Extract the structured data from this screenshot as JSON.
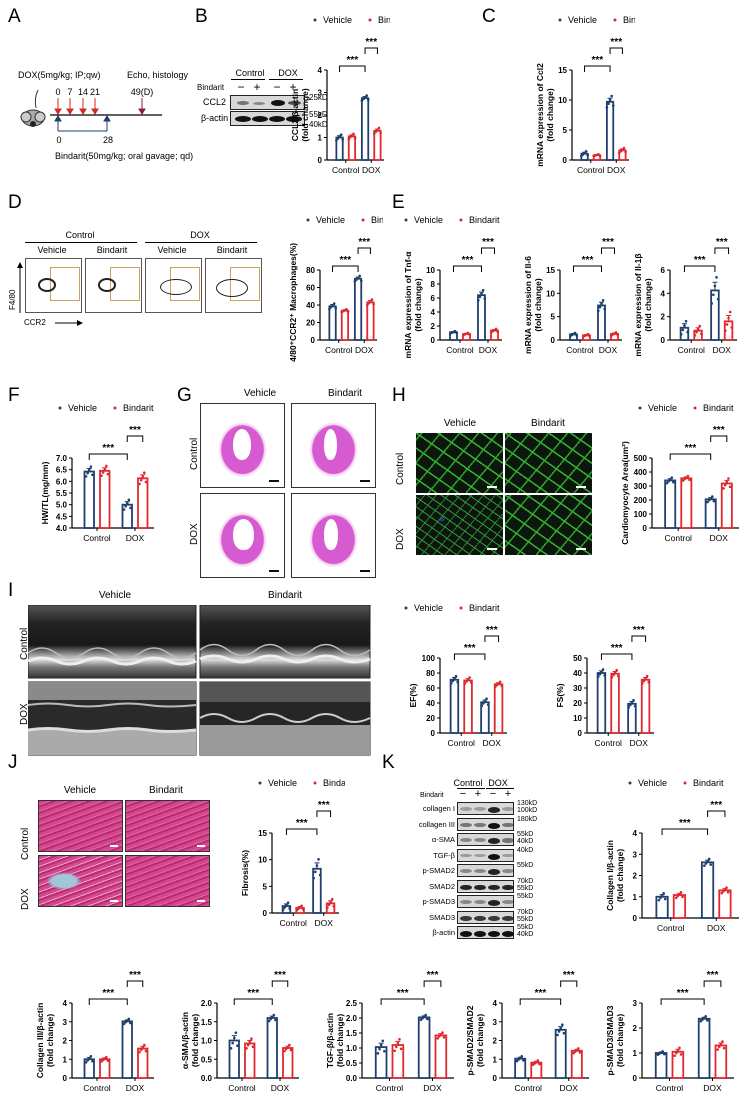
{
  "panels": {
    "A": {
      "label": "A",
      "dox_protocol": "DOX(5mg/kg; IP;qw)",
      "endpoint": "Echo, histology",
      "dox_days": [
        "0",
        "7",
        "14",
        "21"
      ],
      "end_day": "49(D)",
      "bindarit_start": "0",
      "bindarit_end": "28",
      "bindarit_protocol": "Bindarit(50mg/kg; oral gavage; qd)",
      "arrow_color": "#d12a2a"
    },
    "B": {
      "label": "B",
      "groups": [
        "Control",
        "DOX"
      ],
      "bindarit_row": "Bindarit",
      "signs": [
        "−",
        "+",
        "−",
        "+"
      ],
      "rows": [
        {
          "name": "CCL2",
          "markers": [
            "25kD"
          ]
        },
        {
          "name": "β-actin",
          "markers": [
            "55kD",
            "40kD"
          ]
        }
      ]
    },
    "C": {
      "label": "C"
    },
    "D": {
      "label": "D",
      "groups": [
        "Control",
        "DOX"
      ],
      "subgroups": [
        "Vehicle",
        "Bindarit",
        "Vehicle",
        "Bindarit"
      ],
      "y_axis": "F4/80",
      "x_axis": "CCR2"
    },
    "E": {
      "label": "E"
    },
    "F": {
      "label": "F"
    },
    "G": {
      "label": "G",
      "cols": [
        "Vehicle",
        "Bindarit"
      ],
      "rows": [
        "Control",
        "DOX"
      ]
    },
    "H": {
      "label": "H",
      "cols": [
        "Vehicle",
        "Bindarit"
      ],
      "rows": [
        "Control",
        "DOX"
      ]
    },
    "I": {
      "label": "I",
      "cols": [
        "Vehicle",
        "Bindarit"
      ],
      "rows": [
        "Control",
        "DOX"
      ]
    },
    "J": {
      "label": "J",
      "cols": [
        "Vehicle",
        "Bindarit"
      ],
      "rows": [
        "Control",
        "DOX"
      ]
    },
    "K": {
      "label": "K",
      "groups": [
        "Control",
        "DOX"
      ],
      "bindarit_row": "Bindarit",
      "signs": [
        "−",
        "+",
        "−",
        "+"
      ],
      "rows": [
        {
          "name": "collagen I",
          "markers": [
            "130kD",
            "100kD"
          ]
        },
        {
          "name": "collagen III",
          "markers": [
            "180kD"
          ]
        },
        {
          "name": "α-SMA",
          "markers": [
            "55kD",
            "40kD"
          ]
        },
        {
          "name": "TGF-β",
          "markers": [
            "40kD"
          ]
        },
        {
          "name": "p-SMAD2",
          "markers": [
            "55kD"
          ]
        },
        {
          "name": "SMAD2",
          "markers": [
            "70kD",
            "55kD"
          ]
        },
        {
          "name": "p-SMAD3",
          "markers": [
            "55kD"
          ]
        },
        {
          "name": "SMAD3",
          "markers": [
            "70kD",
            "55kD"
          ]
        },
        {
          "name": "β-actin",
          "markers": [
            "55kD",
            "40kD"
          ]
        }
      ]
    }
  },
  "legend": {
    "vehicle": "Vehicle",
    "bindarit": "Bindarit"
  },
  "colors": {
    "vehicle": "#1f3f6e",
    "bindarit": "#e0282e",
    "axis": "#000000"
  },
  "significance": "***",
  "chart_data": [
    {
      "id": "B",
      "type": "bar",
      "title": "",
      "ylabel": "CCL2/β-actin\n(fold change)",
      "categories": [
        "Control",
        "DOX"
      ],
      "ylim": [
        0,
        4
      ],
      "yticks": [
        0,
        1,
        2,
        3,
        4
      ],
      "series": [
        {
          "name": "Vehicle",
          "values": [
            1.0,
            2.75
          ],
          "err": [
            0.08,
            0.07
          ]
        },
        {
          "name": "Bindarit",
          "values": [
            1.05,
            1.3
          ],
          "err": [
            0.07,
            0.08
          ]
        }
      ],
      "annotations": [
        "*** Control-Vehicle vs DOX-Vehicle",
        "*** DOX-Vehicle vs DOX-Bindarit"
      ]
    },
    {
      "id": "C",
      "type": "bar",
      "ylabel": "mRNA expression of Ccl2\n(fold change)",
      "categories": [
        "Control",
        "DOX"
      ],
      "ylim": [
        0,
        15
      ],
      "yticks": [
        0,
        5,
        10,
        15
      ],
      "series": [
        {
          "name": "Vehicle",
          "values": [
            1.05,
            9.7
          ],
          "err": [
            0.25,
            0.6
          ]
        },
        {
          "name": "Bindarit",
          "values": [
            0.8,
            1.6
          ],
          "err": [
            0.1,
            0.25
          ]
        }
      ],
      "annotations": [
        "***",
        "***"
      ]
    },
    {
      "id": "D",
      "type": "bar",
      "ylabel": "F4/80⁺CCR2⁺ Macrophages(%)",
      "categories": [
        "Control",
        "DOX"
      ],
      "ylim": [
        0,
        80
      ],
      "yticks": [
        0,
        20,
        40,
        60,
        80
      ],
      "series": [
        {
          "name": "Vehicle",
          "values": [
            38.5,
            70
          ],
          "err": [
            2,
            2
          ]
        },
        {
          "name": "Bindarit",
          "values": [
            33.5,
            43
          ],
          "err": [
            1,
            2
          ]
        }
      ],
      "annotations": [
        "***",
        "***"
      ]
    },
    {
      "id": "E1",
      "type": "bar",
      "ylabel": "mRNA expression of Tnf-α\n(fold change)",
      "categories": [
        "Control",
        "DOX"
      ],
      "ylim": [
        0,
        10
      ],
      "yticks": [
        0,
        2,
        4,
        6,
        8,
        10
      ],
      "series": [
        {
          "name": "Vehicle",
          "values": [
            1.1,
            6.4
          ],
          "err": [
            0.1,
            0.45
          ]
        },
        {
          "name": "Bindarit",
          "values": [
            0.85,
            1.35
          ],
          "err": [
            0.1,
            0.15
          ]
        }
      ],
      "annotations": [
        "***",
        "***"
      ]
    },
    {
      "id": "E2",
      "type": "bar",
      "ylabel": "mRNA expression of Il-6\n(fold change)",
      "categories": [
        "Control",
        "DOX"
      ],
      "ylim": [
        0,
        15
      ],
      "yticks": [
        0,
        5,
        10,
        15
      ],
      "series": [
        {
          "name": "Vehicle",
          "values": [
            1.2,
            7.4
          ],
          "err": [
            0.2,
            0.7
          ]
        },
        {
          "name": "Bindarit",
          "values": [
            1.0,
            1.3
          ],
          "err": [
            0.15,
            0.2
          ]
        }
      ],
      "annotations": [
        "***",
        "***"
      ]
    },
    {
      "id": "E3",
      "type": "bar",
      "ylabel": "mRNA expression of Il-1β\n(fold change)",
      "categories": [
        "Control",
        "DOX"
      ],
      "ylim": [
        0,
        6
      ],
      "yticks": [
        0,
        2,
        4,
        6
      ],
      "series": [
        {
          "name": "Vehicle",
          "values": [
            1.05,
            4.25
          ],
          "err": [
            0.35,
            0.7
          ]
        },
        {
          "name": "Bindarit",
          "values": [
            0.8,
            1.6
          ],
          "err": [
            0.25,
            0.5
          ]
        }
      ],
      "annotations": [
        "***",
        "***"
      ]
    },
    {
      "id": "F",
      "type": "bar",
      "ylabel": "HW/TL(mg/mm)",
      "categories": [
        "Control",
        "DOX"
      ],
      "ylim": [
        4.0,
        7.0
      ],
      "yticks": [
        4.0,
        4.5,
        5.0,
        5.5,
        6.0,
        6.5,
        7.0
      ],
      "series": [
        {
          "name": "Vehicle",
          "values": [
            6.42,
            5.0
          ],
          "err": [
            0.13,
            0.13
          ]
        },
        {
          "name": "Bindarit",
          "values": [
            6.45,
            6.13
          ],
          "err": [
            0.13,
            0.15
          ]
        }
      ],
      "annotations": [
        "***",
        "***"
      ]
    },
    {
      "id": "H",
      "type": "bar",
      "ylabel": "Cardiomyocyte Area(um²)",
      "categories": [
        "Control",
        "DOX"
      ],
      "ylim": [
        0,
        500
      ],
      "yticks": [
        0,
        100,
        200,
        300,
        400,
        500
      ],
      "series": [
        {
          "name": "Vehicle",
          "values": [
            340,
            205
          ],
          "err": [
            12,
            12
          ]
        },
        {
          "name": "Bindarit",
          "values": [
            355,
            318
          ],
          "err": [
            10,
            22
          ]
        }
      ],
      "annotations": [
        "***",
        "***"
      ]
    },
    {
      "id": "I1",
      "type": "bar",
      "ylabel": "EF(%)",
      "categories": [
        "Control",
        "DOX"
      ],
      "ylim": [
        0,
        100
      ],
      "yticks": [
        0,
        20,
        40,
        60,
        80,
        100
      ],
      "series": [
        {
          "name": "Vehicle",
          "values": [
            71,
            41
          ],
          "err": [
            3,
            3
          ]
        },
        {
          "name": "Bindarit",
          "values": [
            70,
            65
          ],
          "err": [
            2.5,
            2
          ]
        }
      ],
      "annotations": [
        "***",
        "***"
      ]
    },
    {
      "id": "I2",
      "type": "bar",
      "ylabel": "FS(%)",
      "categories": [
        "Control",
        "DOX"
      ],
      "ylim": [
        0,
        50
      ],
      "yticks": [
        0,
        10,
        20,
        30,
        40,
        50
      ],
      "series": [
        {
          "name": "Vehicle",
          "values": [
            40,
            19.5
          ],
          "err": [
            1.5,
            1.5
          ]
        },
        {
          "name": "Bindarit",
          "values": [
            39.5,
            35.5
          ],
          "err": [
            1.5,
            1.5
          ]
        }
      ],
      "annotations": [
        "***",
        "***"
      ]
    },
    {
      "id": "J",
      "type": "bar",
      "ylabel": "Fibrosis(%)",
      "categories": [
        "Control",
        "DOX"
      ],
      "ylim": [
        0,
        15
      ],
      "yticks": [
        0,
        5,
        10,
        15
      ],
      "series": [
        {
          "name": "Vehicle",
          "values": [
            1.3,
            8.3
          ],
          "err": [
            0.4,
            1.1
          ]
        },
        {
          "name": "Bindarit",
          "values": [
            0.95,
            1.8
          ],
          "err": [
            0.25,
            0.5
          ]
        }
      ],
      "annotations": [
        "***",
        "***"
      ]
    },
    {
      "id": "K1",
      "type": "bar",
      "ylabel": "Collagen I/β-actin\n(fold change)",
      "categories": [
        "Control",
        "DOX"
      ],
      "ylim": [
        0,
        4
      ],
      "yticks": [
        0,
        1,
        2,
        3,
        4
      ],
      "series": [
        {
          "name": "Vehicle",
          "values": [
            1.0,
            2.62
          ],
          "err": [
            0.1,
            0.1
          ]
        },
        {
          "name": "Bindarit",
          "values": [
            1.08,
            1.3
          ],
          "err": [
            0.08,
            0.08
          ]
        }
      ],
      "annotations": [
        "***",
        "***"
      ]
    },
    {
      "id": "K2",
      "type": "bar",
      "ylabel": "Collagen III/β-actin\n(fold change)",
      "categories": [
        "Control",
        "DOX"
      ],
      "ylim": [
        0,
        4
      ],
      "yticks": [
        0,
        1,
        2,
        3,
        4
      ],
      "series": [
        {
          "name": "Vehicle",
          "values": [
            1.0,
            3.02
          ],
          "err": [
            0.1,
            0.08
          ]
        },
        {
          "name": "Bindarit",
          "values": [
            1.0,
            1.57
          ],
          "err": [
            0.07,
            0.12
          ]
        }
      ],
      "annotations": [
        "***",
        "***"
      ]
    },
    {
      "id": "K3",
      "type": "bar",
      "ylabel": "α-SMA/β-actin\n(fold change)",
      "categories": [
        "Control",
        "DOX"
      ],
      "ylim": [
        0,
        2.0
      ],
      "yticks": [
        0.0,
        0.5,
        1.0,
        1.5,
        2.0
      ],
      "series": [
        {
          "name": "Vehicle",
          "values": [
            1.0,
            1.6
          ],
          "err": [
            0.13,
            0.05
          ]
        },
        {
          "name": "Bindarit",
          "values": [
            0.92,
            0.8
          ],
          "err": [
            0.08,
            0.05
          ]
        }
      ],
      "annotations": [
        "***",
        "***"
      ]
    },
    {
      "id": "K4",
      "type": "bar",
      "ylabel": "TGF-β/β-actin\n(fold change)",
      "categories": [
        "Control",
        "DOX"
      ],
      "ylim": [
        0,
        2.5
      ],
      "yticks": [
        0.0,
        0.5,
        1.0,
        1.5,
        2.0,
        2.5
      ],
      "series": [
        {
          "name": "Vehicle",
          "values": [
            1.03,
            2.02
          ],
          "err": [
            0.13,
            0.05
          ]
        },
        {
          "name": "Bindarit",
          "values": [
            1.1,
            1.42
          ],
          "err": [
            0.12,
            0.06
          ]
        }
      ],
      "annotations": [
        "***",
        "***"
      ]
    },
    {
      "id": "K5",
      "type": "bar",
      "ylabel": "p-SMAD2/SMAD2\n(fold change)",
      "categories": [
        "Control",
        "DOX"
      ],
      "ylim": [
        0,
        4
      ],
      "yticks": [
        0,
        1,
        2,
        3,
        4
      ],
      "series": [
        {
          "name": "Vehicle",
          "values": [
            1.03,
            2.57
          ],
          "err": [
            0.08,
            0.17
          ]
        },
        {
          "name": "Bindarit",
          "values": [
            0.82,
            1.45
          ],
          "err": [
            0.07,
            0.08
          ]
        }
      ],
      "annotations": [
        "***",
        "***"
      ]
    },
    {
      "id": "K6",
      "type": "bar",
      "ylabel": "p-SMAD3/SMAD3\n(fold change)",
      "categories": [
        "Control",
        "DOX"
      ],
      "ylim": [
        0,
        3
      ],
      "yticks": [
        0,
        1,
        2,
        3
      ],
      "series": [
        {
          "name": "Vehicle",
          "values": [
            1.0,
            2.37
          ],
          "err": [
            0.04,
            0.06
          ]
        },
        {
          "name": "Bindarit",
          "values": [
            1.05,
            1.3
          ],
          "err": [
            0.1,
            0.1
          ]
        }
      ],
      "annotations": [
        "***",
        "***"
      ]
    }
  ]
}
